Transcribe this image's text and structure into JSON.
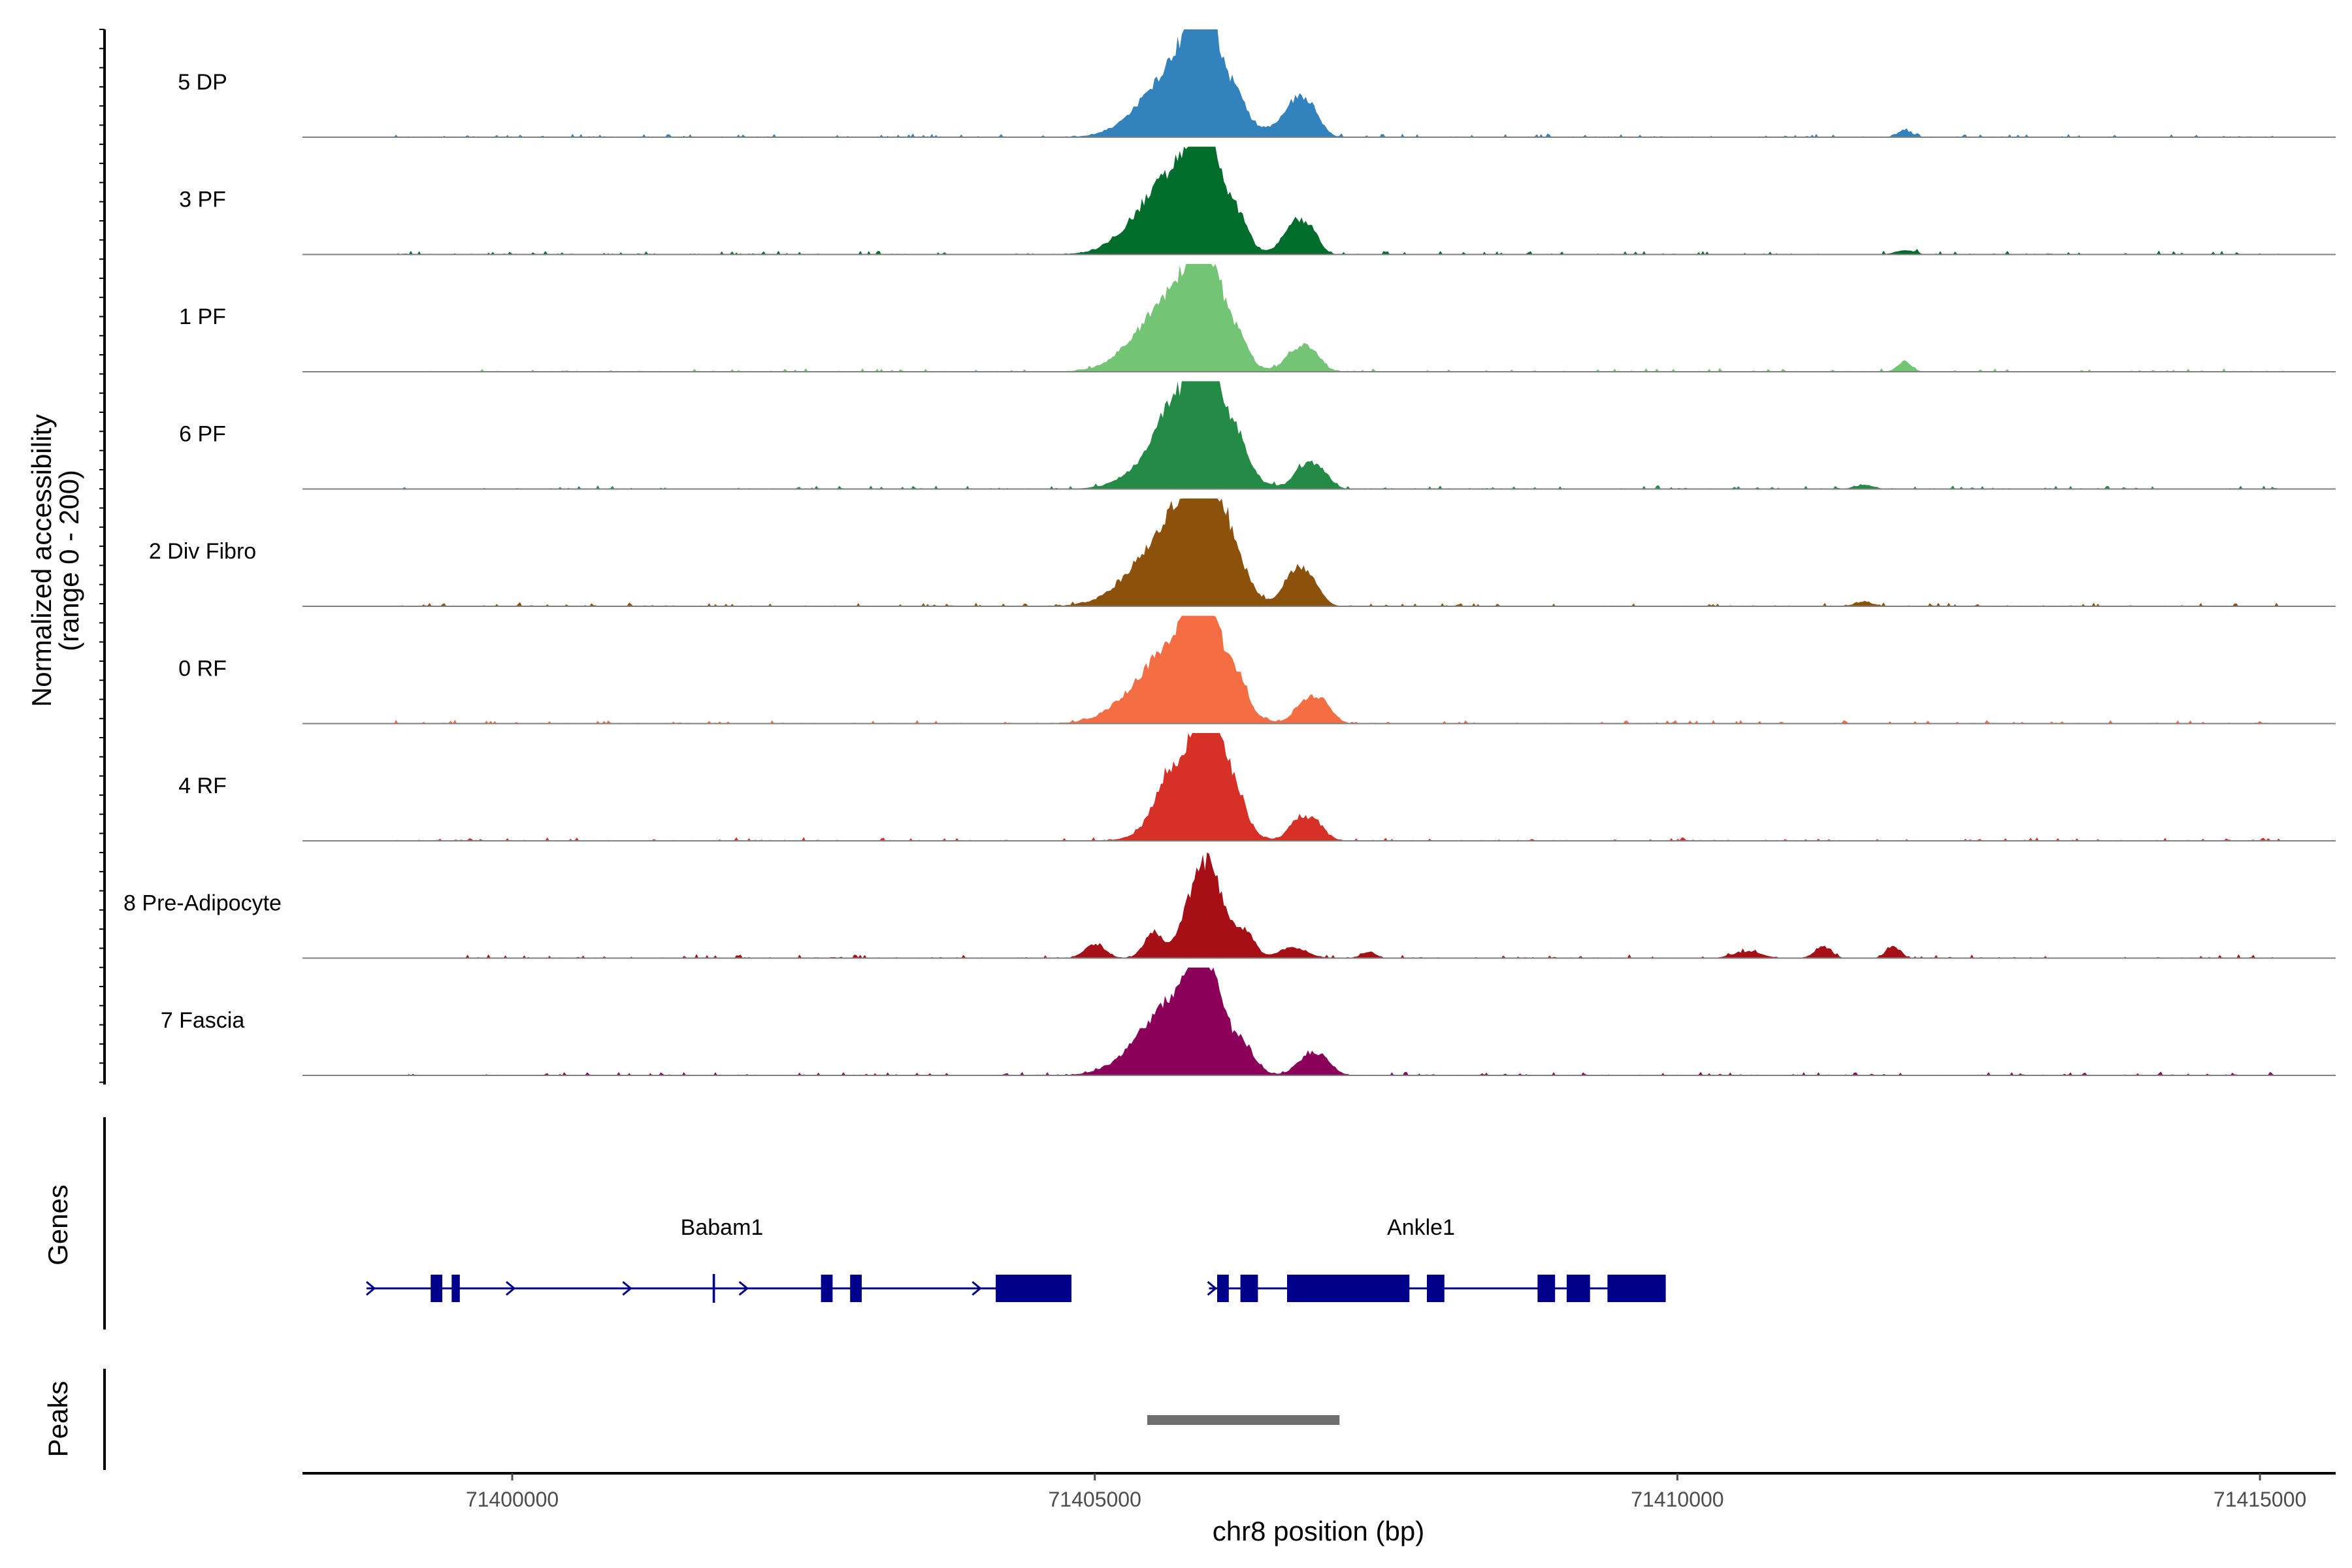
{
  "chart_data": {
    "type": "coverage",
    "region": {
      "chromosome": "chr8",
      "start": 71398200,
      "end": 71415650
    },
    "xlabel": "chr8 position (bp)",
    "ylabel": "Normalized accessibility",
    "ylabel_sub": "(range 0 - 200)",
    "ylim": [
      0,
      200
    ],
    "x_ticks": [
      {
        "value": 71400000,
        "label": "71400000"
      },
      {
        "value": 71405000,
        "label": "71405000"
      },
      {
        "value": 71410000,
        "label": "71410000"
      },
      {
        "value": 71415000,
        "label": "71415000"
      }
    ],
    "tracks": [
      {
        "name": "5 DP",
        "color": "#3182BD",
        "scale": 0.92,
        "peaks": [
          [
            71405750,
            300,
            150
          ],
          [
            71405950,
            150,
            140
          ],
          [
            71406250,
            70,
            30
          ],
          [
            71406700,
            90,
            60
          ],
          [
            71406850,
            90,
            55
          ],
          [
            71406500,
            80,
            10
          ],
          [
            71411950,
            60,
            14
          ]
        ]
      },
      {
        "name": "3 PF",
        "color": "#006D2C",
        "scale": 1.0,
        "peaks": [
          [
            71405700,
            300,
            150
          ],
          [
            71405950,
            130,
            160
          ],
          [
            71406250,
            70,
            40
          ],
          [
            71406700,
            90,
            55
          ],
          [
            71406850,
            80,
            40
          ],
          [
            71411950,
            80,
            8
          ]
        ]
      },
      {
        "name": "1 PF",
        "color": "#74C476",
        "scale": 0.95,
        "peaks": [
          [
            71405700,
            300,
            150
          ],
          [
            71405950,
            140,
            150
          ],
          [
            71406250,
            70,
            40
          ],
          [
            71406700,
            90,
            30
          ],
          [
            71406850,
            90,
            40
          ],
          [
            71411950,
            60,
            20
          ]
        ]
      },
      {
        "name": "6 PF",
        "color": "#238B45",
        "scale": 0.93,
        "peaks": [
          [
            71405600,
            80,
            30
          ],
          [
            71405800,
            300,
            150
          ],
          [
            71405950,
            150,
            150
          ],
          [
            71406250,
            70,
            40
          ],
          [
            71406800,
            90,
            45
          ],
          [
            71406950,
            80,
            30
          ],
          [
            71411600,
            80,
            8
          ]
        ]
      },
      {
        "name": "2 Div Fibro",
        "color": "#8C510A",
        "scale": 1.0,
        "peaks": [
          [
            71405700,
            320,
            150
          ],
          [
            71405950,
            160,
            150
          ],
          [
            71406200,
            120,
            40
          ],
          [
            71406700,
            90,
            55
          ],
          [
            71406850,
            90,
            45
          ],
          [
            71411600,
            80,
            8
          ]
        ]
      },
      {
        "name": "0 RF",
        "color": "#F46D43",
        "scale": 0.95,
        "peaks": [
          [
            71405700,
            320,
            150
          ],
          [
            71405950,
            150,
            150
          ],
          [
            71406250,
            70,
            40
          ],
          [
            71406800,
            90,
            35
          ],
          [
            71406950,
            90,
            40
          ]
        ]
      },
      {
        "name": "4 RF",
        "color": "#D73027",
        "scale": 1.0,
        "peaks": [
          [
            71405600,
            90,
            40
          ],
          [
            71405850,
            240,
            140
          ],
          [
            71406000,
            130,
            140
          ],
          [
            71406250,
            70,
            35
          ],
          [
            71406750,
            90,
            35
          ],
          [
            71406900,
            80,
            30
          ]
        ]
      },
      {
        "name": "8 Pre-Adipocyte",
        "color": "#A50F15",
        "scale": 1.0,
        "peaks": [
          [
            71405000,
            90,
            25
          ],
          [
            71405500,
            80,
            45
          ],
          [
            71405950,
            150,
            180
          ],
          [
            71406300,
            80,
            40
          ],
          [
            71406700,
            120,
            20
          ],
          [
            71407350,
            60,
            12
          ],
          [
            71410600,
            120,
            12
          ],
          [
            71411250,
            70,
            22
          ],
          [
            71411850,
            60,
            22
          ]
        ]
      },
      {
        "name": "7 Fascia",
        "color": "#8B0059",
        "scale": 0.9,
        "peaks": [
          [
            71405700,
            300,
            150
          ],
          [
            71405950,
            150,
            140
          ],
          [
            71406300,
            80,
            35
          ],
          [
            71406800,
            90,
            30
          ],
          [
            71406950,
            90,
            35
          ]
        ]
      }
    ],
    "genes": [
      {
        "name": "Babam1",
        "label_pos": 71401800,
        "start": 71398750,
        "end": 71404800,
        "strand": "+",
        "exons": [
          [
            71399300,
            71399400
          ],
          [
            71399480,
            71399550
          ],
          [
            71401720,
            71401740
          ],
          [
            71402650,
            71402750
          ],
          [
            71402900,
            71403000
          ],
          [
            71404150,
            71404800
          ]
        ],
        "arrows": [
          71398800,
          71400000,
          71401000,
          71402000,
          71404000
        ]
      },
      {
        "name": "Ankle1",
        "label_pos": 71407800,
        "start": 71405980,
        "end": 71409900,
        "strand": "+",
        "exons": [
          [
            71406050,
            71406150
          ],
          [
            71406250,
            71406400
          ],
          [
            71406650,
            71407700
          ],
          [
            71407850,
            71408000
          ],
          [
            71408800,
            71408950
          ],
          [
            71409050,
            71409250
          ],
          [
            71409400,
            71409900
          ]
        ],
        "arrows": [
          71406020
        ]
      }
    ],
    "peak_regions": [
      [
        71405450,
        71407100
      ]
    ],
    "panel_titles": {
      "genes": "Genes",
      "peaks": "Peaks"
    }
  }
}
